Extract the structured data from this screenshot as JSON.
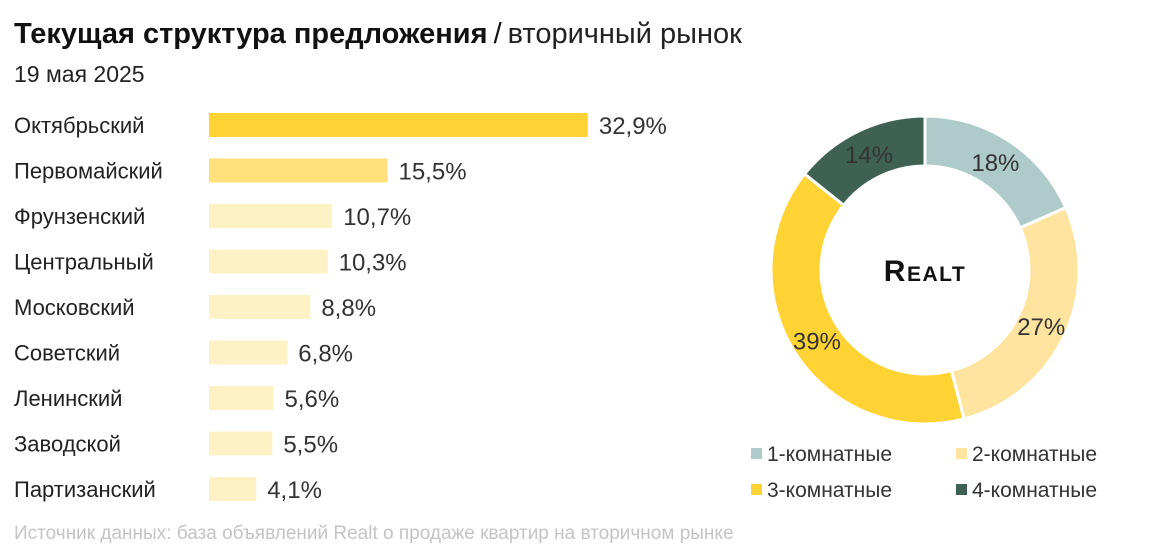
{
  "title": {
    "main": "Текущая структура предложения",
    "separator": "/",
    "sub": "вторичный рынок"
  },
  "date": "19 мая 2025",
  "source": "Источник данных: база объявлений Realt о продаже квартир на вторичном рынке",
  "logo": "Realt",
  "colors": {
    "bar_strong": "#ffd333",
    "bar_mid": "#ffe07a",
    "bar_light": "#fff1c6",
    "donut_1": "#aecbca",
    "donut_2": "#ffe4a0",
    "donut_3": "#ffd333",
    "donut_4": "#3e6154"
  },
  "chart_data": [
    {
      "type": "bar",
      "orientation": "horizontal",
      "categories": [
        "Октябрьский",
        "Первомайский",
        "Фрунзенский",
        "Центральный",
        "Московский",
        "Советский",
        "Ленинский",
        "Заводской",
        "Партизанский"
      ],
      "values": [
        32.9,
        15.5,
        10.7,
        10.3,
        8.8,
        6.8,
        5.6,
        5.5,
        4.1
      ],
      "labels": [
        "32,9%",
        "15,5%",
        "10,7%",
        "10,3%",
        "8,8%",
        "6,8%",
        "5,6%",
        "5,5%",
        "4,1%"
      ],
      "unit": "%",
      "xlim": [
        0,
        33
      ]
    },
    {
      "type": "pie",
      "style": "donut",
      "categories": [
        "1-комнатные",
        "2-комнатные",
        "3-комнатные",
        "4-комнатные"
      ],
      "values": [
        18,
        27,
        39,
        14
      ],
      "labels": [
        "18%",
        "27%",
        "39%",
        "14%"
      ],
      "legend": "bottom"
    }
  ]
}
